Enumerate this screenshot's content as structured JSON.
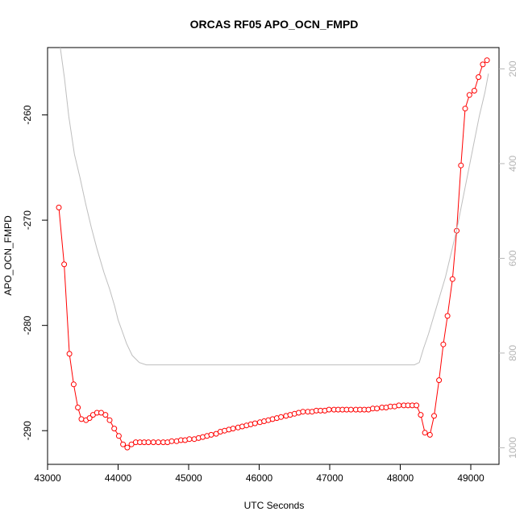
{
  "chart_data": {
    "type": "line",
    "title": "ORCAS RF05 APO_OCN_FMPD",
    "xlabel": "UTC Seconds",
    "ylabel": "APO_OCN_FMPD",
    "xlim": [
      43000,
      49400
    ],
    "ylim": [
      -293.2,
      -253.6
    ],
    "x_ticks": [
      43000,
      44000,
      45000,
      46000,
      47000,
      48000,
      49000
    ],
    "y_ticks": [
      -290,
      -280,
      -270,
      -260
    ],
    "y2_ticks": [
      200,
      400,
      600,
      800,
      1000
    ],
    "y2_lim_top_to_bottom": [
      155,
      1035
    ],
    "colors": {
      "primary": "#ff0000",
      "secondary": "#bebebe",
      "axis": "#000000",
      "secondary_axis": "#b5b5b5"
    },
    "series": [
      {
        "name": "",
        "axis": "left",
        "style": "line-with-open-circles",
        "color": "#ff0000",
        "x": [
          43160,
          43235,
          43310,
          43370,
          43430,
          43480,
          43545,
          43595,
          43645,
          43700,
          43760,
          43820,
          43880,
          43945,
          44010,
          44070,
          44130,
          44190,
          44250,
          44310,
          44370,
          44430,
          44500,
          44570,
          44640,
          44700,
          44760,
          44830,
          44890,
          44950,
          45010,
          45080,
          45140,
          45200,
          45260,
          45320,
          45390,
          45450,
          45510,
          45570,
          45630,
          45700,
          45760,
          45820,
          45880,
          45940,
          46010,
          46070,
          46130,
          46190,
          46250,
          46310,
          46380,
          46440,
          46500,
          46560,
          46620,
          46690,
          46750,
          46810,
          46870,
          46930,
          46990,
          47060,
          47120,
          47180,
          47240,
          47300,
          47370,
          47430,
          47490,
          47550,
          47610,
          47670,
          47740,
          47800,
          47860,
          47920,
          47980,
          48050,
          48110,
          48170,
          48230,
          48290,
          48350,
          48420,
          48480,
          48550,
          48610,
          48670,
          48740,
          48800,
          48860,
          48920,
          48980,
          49050,
          49110,
          49170,
          49230
        ],
        "y": [
          -268.8,
          -274.2,
          -282.7,
          -285.6,
          -287.8,
          -288.9,
          -289.0,
          -288.8,
          -288.5,
          -288.3,
          -288.3,
          -288.5,
          -289.0,
          -289.8,
          -290.5,
          -291.3,
          -291.6,
          -291.3,
          -291.1,
          -291.1,
          -291.1,
          -291.1,
          -291.1,
          -291.1,
          -291.1,
          -291.1,
          -291.0,
          -291.0,
          -290.9,
          -290.9,
          -290.8,
          -290.8,
          -290.7,
          -290.6,
          -290.5,
          -290.4,
          -290.3,
          -290.1,
          -290.0,
          -289.9,
          -289.8,
          -289.7,
          -289.6,
          -289.5,
          -289.4,
          -289.3,
          -289.2,
          -289.1,
          -289.0,
          -288.9,
          -288.8,
          -288.7,
          -288.6,
          -288.5,
          -288.4,
          -288.3,
          -288.2,
          -288.2,
          -288.2,
          -288.1,
          -288.1,
          -288.1,
          -288.0,
          -288.0,
          -288.0,
          -288.0,
          -288.0,
          -288.0,
          -288.0,
          -288.0,
          -288.0,
          -288.0,
          -287.9,
          -287.9,
          -287.8,
          -287.8,
          -287.7,
          -287.7,
          -287.6,
          -287.6,
          -287.6,
          -287.6,
          -287.6,
          -288.5,
          -290.2,
          -290.4,
          -288.6,
          -285.2,
          -281.8,
          -279.1,
          -275.6,
          -271.0,
          -264.8,
          -259.4,
          -258.1,
          -257.7,
          -256.4,
          -255.2,
          -254.8
        ]
      },
      {
        "name": "",
        "axis": "right",
        "style": "line",
        "color": "#bebebe",
        "x": [
          43180,
          43240,
          43300,
          43380,
          43460,
          43540,
          43620,
          43700,
          43800,
          43880,
          43950,
          44000,
          44060,
          44120,
          44200,
          44300,
          44400,
          45000,
          46000,
          47000,
          48000,
          48200,
          48270,
          48330,
          48400,
          48480,
          48560,
          48640,
          48720,
          48800,
          48880,
          48960,
          49040,
          49120,
          49200,
          49250
        ],
        "y": [
          155,
          220,
          300,
          380,
          430,
          485,
          535,
          580,
          630,
          665,
          700,
          730,
          755,
          780,
          805,
          820,
          825,
          825,
          825,
          825,
          825,
          825,
          820,
          790,
          760,
          720,
          680,
          640,
          590,
          540,
          480,
          420,
          360,
          300,
          250,
          210
        ]
      }
    ]
  }
}
